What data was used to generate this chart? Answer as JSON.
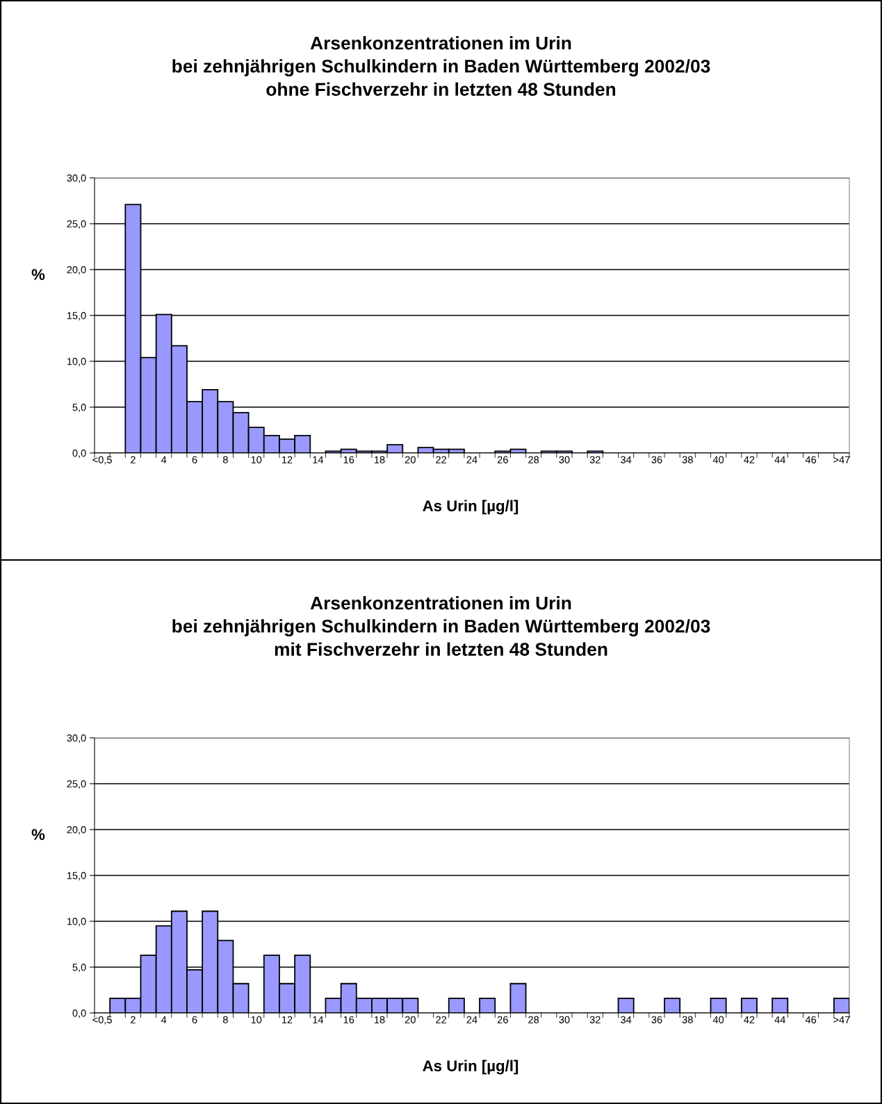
{
  "chart_data": [
    {
      "type": "bar",
      "title": "Arsenkonzentrationen im Urin\nbei zehnjährigen Schulkindern in Baden Württemberg 2002/03\nohne Fischverzehr in letzten 48 Stunden",
      "xlabel": "As Urin [µg/l]",
      "ylabel": "%",
      "categories": [
        "<0,5",
        null,
        "2",
        null,
        "4",
        null,
        "6",
        null,
        "8",
        null,
        "10",
        null,
        "12",
        null,
        "14",
        null,
        "16",
        null,
        "18",
        null,
        "20",
        null,
        "22",
        null,
        "24",
        null,
        "26",
        null,
        "28",
        null,
        "30",
        null,
        "32",
        null,
        "34",
        null,
        "36",
        null,
        "38",
        null,
        "40",
        null,
        "42",
        null,
        "44",
        null,
        "46",
        null,
        ">47"
      ],
      "values": [
        0,
        0,
        27.1,
        10.4,
        15.1,
        11.7,
        5.6,
        6.9,
        5.6,
        4.4,
        2.8,
        1.9,
        1.5,
        1.9,
        0,
        0.2,
        0.4,
        0.2,
        0.2,
        0.9,
        0,
        0.6,
        0.4,
        0.4,
        0,
        0,
        0.2,
        0.4,
        0,
        0.2,
        0.2,
        0,
        0.2,
        0,
        0,
        0,
        0,
        0,
        0,
        0,
        0,
        0,
        0,
        0,
        0,
        0,
        0,
        0,
        0
      ],
      "color": "#9999ff",
      "ylim": [
        0,
        30
      ],
      "yticks": [
        {
          "value": 0,
          "label": "0,0"
        },
        {
          "value": 5,
          "label": "5,0"
        },
        {
          "value": 10,
          "label": "10,0"
        },
        {
          "value": 15,
          "label": "15,0"
        },
        {
          "value": 20,
          "label": "20,0"
        },
        {
          "value": 25,
          "label": "25,0"
        },
        {
          "value": 30,
          "label": "30,0"
        }
      ],
      "grid": "y"
    },
    {
      "type": "bar",
      "title": "Arsenkonzentrationen im Urin\nbei zehnjährigen Schulkindern in Baden Württemberg 2002/03\nmit Fischverzehr in letzten 48 Stunden",
      "xlabel": "As Urin [µg/l]",
      "ylabel": "%",
      "categories": [
        "<0,5",
        null,
        "2",
        null,
        "4",
        null,
        "6",
        null,
        "8",
        null,
        "10",
        null,
        "12",
        null,
        "14",
        null,
        "16",
        null,
        "18",
        null,
        "20",
        null,
        "22",
        null,
        "24",
        null,
        "26",
        null,
        "28",
        null,
        "30",
        null,
        "32",
        null,
        "34",
        null,
        "36",
        null,
        "38",
        null,
        "40",
        null,
        "42",
        null,
        "44",
        null,
        "46",
        null,
        ">47"
      ],
      "values": [
        0,
        1.6,
        1.6,
        6.3,
        9.5,
        11.1,
        4.7,
        11.1,
        7.9,
        3.2,
        0,
        6.3,
        3.2,
        6.3,
        0,
        1.6,
        3.2,
        1.6,
        1.6,
        1.6,
        1.6,
        0,
        0,
        1.6,
        0,
        1.6,
        0,
        3.2,
        0,
        0,
        0,
        0,
        0,
        0,
        1.6,
        0,
        0,
        1.6,
        0,
        0,
        1.6,
        0,
        1.6,
        0,
        1.6,
        0,
        0,
        0,
        1.6
      ],
      "color": "#9999ff",
      "ylim": [
        0,
        30
      ],
      "yticks": [
        {
          "value": 0,
          "label": "0,0"
        },
        {
          "value": 5,
          "label": "5,0"
        },
        {
          "value": 10,
          "label": "10,0"
        },
        {
          "value": 15,
          "label": "15,0"
        },
        {
          "value": 20,
          "label": "20,0"
        },
        {
          "value": 25,
          "label": "25,0"
        },
        {
          "value": 30,
          "label": "30,0"
        }
      ],
      "grid": "y"
    }
  ]
}
